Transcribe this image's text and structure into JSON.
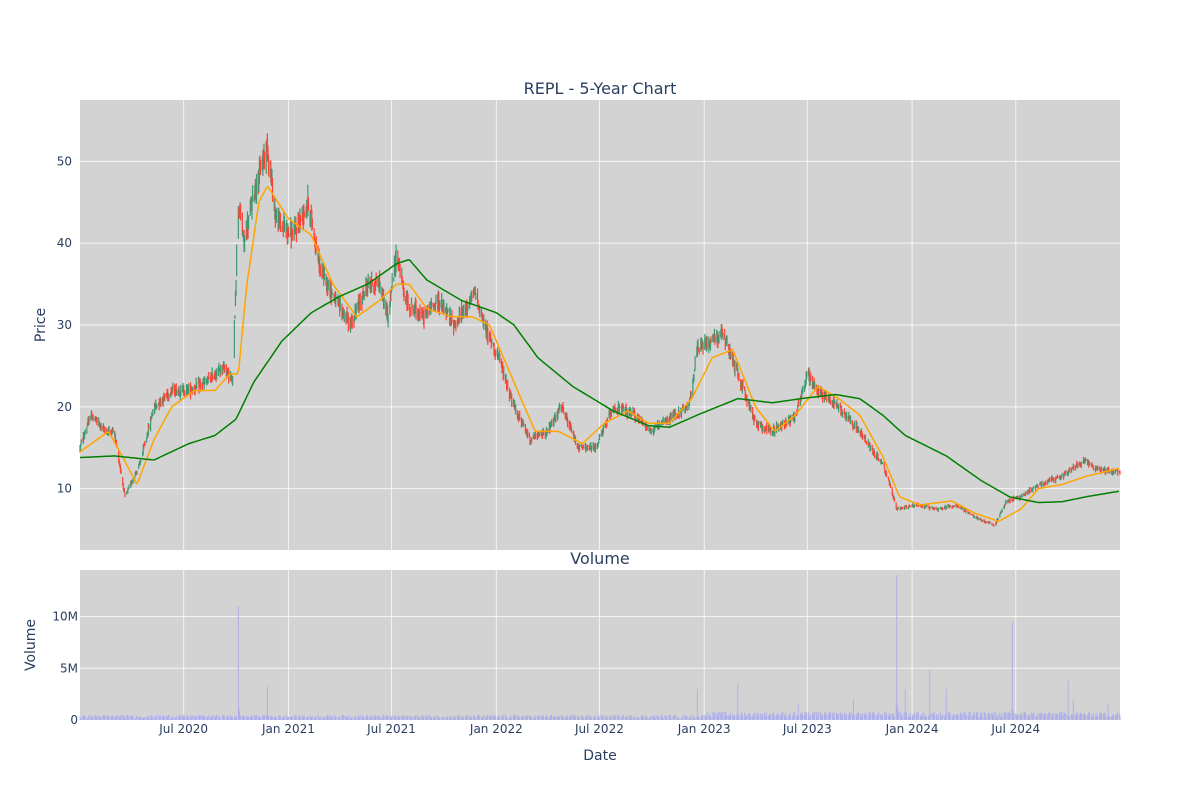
{
  "chart_data": [
    {
      "type": "candlestick",
      "title": "REPL - 5-Year Chart",
      "ylabel": "Price",
      "ylim": [
        2.5,
        57.5
      ],
      "yticks": [
        10,
        20,
        30,
        40,
        50
      ],
      "grid": true,
      "x_range": [
        "2020-01-01",
        "2024-12-31"
      ],
      "colors": {
        "up": "#3d9970",
        "down": "#ff4136",
        "ma_short": "#ffa500",
        "ma_long": "#008000"
      },
      "price_keypoints": [
        [
          "2020-01-01",
          15
        ],
        [
          "2020-01-20",
          19
        ],
        [
          "2020-02-15",
          17
        ],
        [
          "2020-03-01",
          17
        ],
        [
          "2020-03-20",
          9
        ],
        [
          "2020-04-15",
          13
        ],
        [
          "2020-05-10",
          20
        ],
        [
          "2020-06-10",
          22
        ],
        [
          "2020-07-10",
          22
        ],
        [
          "2020-08-10",
          23
        ],
        [
          "2020-09-10",
          25
        ],
        [
          "2020-09-25",
          23
        ],
        [
          "2020-10-05",
          45
        ],
        [
          "2020-10-15",
          40
        ],
        [
          "2020-11-01",
          46
        ],
        [
          "2020-11-25",
          52
        ],
        [
          "2020-12-10",
          43
        ],
        [
          "2021-01-10",
          41
        ],
        [
          "2021-02-05",
          45
        ],
        [
          "2021-02-25",
          37
        ],
        [
          "2021-03-25",
          33
        ],
        [
          "2021-04-20",
          30
        ],
        [
          "2021-05-20",
          35
        ],
        [
          "2021-06-10",
          35
        ],
        [
          "2021-06-25",
          31
        ],
        [
          "2021-07-10",
          39
        ],
        [
          "2021-07-25",
          33
        ],
        [
          "2021-08-25",
          31
        ],
        [
          "2021-09-20",
          33
        ],
        [
          "2021-10-20",
          30
        ],
        [
          "2021-11-25",
          34
        ],
        [
          "2021-12-10",
          30
        ],
        [
          "2022-01-05",
          26
        ],
        [
          "2022-02-01",
          20
        ],
        [
          "2022-03-01",
          16
        ],
        [
          "2022-04-01",
          17
        ],
        [
          "2022-04-25",
          20
        ],
        [
          "2022-05-25",
          15
        ],
        [
          "2022-06-25",
          15
        ],
        [
          "2022-07-25",
          20
        ],
        [
          "2022-09-01",
          19
        ],
        [
          "2022-10-01",
          17
        ],
        [
          "2022-11-10",
          19
        ],
        [
          "2022-12-05",
          20
        ],
        [
          "2022-12-20",
          27
        ],
        [
          "2023-02-01",
          29
        ],
        [
          "2023-03-01",
          24
        ],
        [
          "2023-04-01",
          18
        ],
        [
          "2023-05-01",
          17
        ],
        [
          "2023-06-10",
          19
        ],
        [
          "2023-07-01",
          24
        ],
        [
          "2023-07-20",
          22
        ],
        [
          "2023-08-25",
          20
        ],
        [
          "2023-09-20",
          18
        ],
        [
          "2023-10-20",
          15
        ],
        [
          "2023-11-10",
          13
        ],
        [
          "2023-11-25",
          10
        ],
        [
          "2023-12-05",
          7.5
        ],
        [
          "2024-01-10",
          8
        ],
        [
          "2024-02-15",
          7.5
        ],
        [
          "2024-03-20",
          8
        ],
        [
          "2024-04-20",
          6.5
        ],
        [
          "2024-05-25",
          5.5
        ],
        [
          "2024-06-15",
          8.5
        ],
        [
          "2024-07-10",
          9
        ],
        [
          "2024-08-10",
          10.5
        ],
        [
          "2024-09-20",
          11.5
        ],
        [
          "2024-10-30",
          13.5
        ],
        [
          "2024-11-15",
          12.5
        ],
        [
          "2024-12-31",
          12
        ]
      ],
      "ma_short_keypoints": [
        [
          "2020-01-01",
          14.5
        ],
        [
          "2020-02-20",
          17
        ],
        [
          "2020-03-15",
          14
        ],
        [
          "2020-04-10",
          10.5
        ],
        [
          "2020-05-10",
          16
        ],
        [
          "2020-06-10",
          20
        ],
        [
          "2020-07-20",
          22
        ],
        [
          "2020-08-25",
          22
        ],
        [
          "2020-09-20",
          24
        ],
        [
          "2020-10-05",
          24
        ],
        [
          "2020-10-20",
          35
        ],
        [
          "2020-11-10",
          45
        ],
        [
          "2020-11-25",
          47
        ],
        [
          "2021-01-01",
          43
        ],
        [
          "2021-02-10",
          41
        ],
        [
          "2021-03-20",
          35
        ],
        [
          "2021-05-01",
          31
        ],
        [
          "2021-06-10",
          33
        ],
        [
          "2021-07-10",
          35
        ],
        [
          "2021-08-01",
          35
        ],
        [
          "2021-09-01",
          32
        ],
        [
          "2021-10-15",
          31
        ],
        [
          "2021-11-20",
          31
        ],
        [
          "2021-12-20",
          30
        ],
        [
          "2022-02-01",
          23
        ],
        [
          "2022-03-10",
          17
        ],
        [
          "2022-04-20",
          17
        ],
        [
          "2022-06-01",
          15.5
        ],
        [
          "2022-07-10",
          18
        ],
        [
          "2022-08-20",
          19.5
        ],
        [
          "2022-09-25",
          18
        ],
        [
          "2022-11-01",
          18
        ],
        [
          "2022-12-10",
          21
        ],
        [
          "2023-01-15",
          26
        ],
        [
          "2023-02-20",
          27
        ],
        [
          "2023-04-01",
          20
        ],
        [
          "2023-05-05",
          17
        ],
        [
          "2023-06-10",
          19
        ],
        [
          "2023-07-20",
          22.5
        ],
        [
          "2023-08-25",
          21
        ],
        [
          "2023-10-01",
          19
        ],
        [
          "2023-11-10",
          14
        ],
        [
          "2023-12-10",
          9
        ],
        [
          "2024-01-15",
          8
        ],
        [
          "2024-03-10",
          8.5
        ],
        [
          "2024-04-20",
          7
        ],
        [
          "2024-06-01",
          6
        ],
        [
          "2024-07-10",
          7.5
        ],
        [
          "2024-08-10",
          10
        ],
        [
          "2024-09-20",
          10.5
        ],
        [
          "2024-11-01",
          11.5
        ],
        [
          "2024-12-31",
          12.5
        ]
      ],
      "ma_long_keypoints": [
        [
          "2020-01-01",
          13.8
        ],
        [
          "2020-03-01",
          14
        ],
        [
          "2020-05-10",
          13.5
        ],
        [
          "2020-07-10",
          15.5
        ],
        [
          "2020-08-25",
          16.5
        ],
        [
          "2020-10-01",
          18.5
        ],
        [
          "2020-11-01",
          23
        ],
        [
          "2020-12-20",
          28
        ],
        [
          "2021-02-10",
          31.5
        ],
        [
          "2021-04-01",
          33.5
        ],
        [
          "2021-05-20",
          35
        ],
        [
          "2021-07-10",
          37.5
        ],
        [
          "2021-08-01",
          38
        ],
        [
          "2021-09-01",
          35.5
        ],
        [
          "2021-11-01",
          33
        ],
        [
          "2022-01-01",
          31.5
        ],
        [
          "2022-02-01",
          30
        ],
        [
          "2022-03-15",
          26
        ],
        [
          "2022-05-15",
          22.5
        ],
        [
          "2022-07-25",
          19.5
        ],
        [
          "2022-09-25",
          17.7
        ],
        [
          "2022-11-01",
          17.5
        ],
        [
          "2022-12-20",
          19
        ],
        [
          "2023-03-01",
          21
        ],
        [
          "2023-05-01",
          20.5
        ],
        [
          "2023-06-20",
          21
        ],
        [
          "2023-08-20",
          21.5
        ],
        [
          "2023-10-01",
          21
        ],
        [
          "2023-11-10",
          19
        ],
        [
          "2023-12-20",
          16.5
        ],
        [
          "2024-03-01",
          14
        ],
        [
          "2024-05-01",
          11
        ],
        [
          "2024-06-20",
          9
        ],
        [
          "2024-08-10",
          8.3
        ],
        [
          "2024-09-20",
          8.4
        ],
        [
          "2024-11-01",
          9
        ],
        [
          "2024-12-31",
          9.7
        ]
      ]
    },
    {
      "type": "bar",
      "title": "Volume",
      "xlabel": "Date",
      "ylabel": "Volume",
      "ylim": [
        0,
        14500000
      ],
      "yticks": [
        0,
        5000000,
        10000000
      ],
      "ytick_labels": [
        "0",
        "5M",
        "10M"
      ],
      "xticks": [
        "2020-07-01",
        "2021-01-01",
        "2021-07-01",
        "2022-01-01",
        "2022-07-01",
        "2023-01-01",
        "2023-07-01",
        "2024-01-01",
        "2024-07-01"
      ],
      "xtick_labels": [
        "Jul 2020",
        "Jan 2021",
        "Jul 2021",
        "Jan 2022",
        "Jul 2022",
        "Jan 2023",
        "Jul 2023",
        "Jan 2024",
        "Jul 2024"
      ],
      "grid": true,
      "bar_color": "#b0b0e8",
      "base_volume": 300000,
      "volume_spikes": [
        [
          "2020-10-05",
          11000000
        ],
        [
          "2020-10-10",
          2500000
        ],
        [
          "2020-11-25",
          3200000
        ],
        [
          "2021-08-01",
          700000
        ],
        [
          "2022-12-20",
          3000000
        ],
        [
          "2023-03-01",
          3500000
        ],
        [
          "2023-06-15",
          1500000
        ],
        [
          "2023-07-01",
          2200000
        ],
        [
          "2023-09-20",
          2000000
        ],
        [
          "2023-11-25",
          5000000
        ],
        [
          "2023-12-05",
          14000000
        ],
        [
          "2023-12-10",
          6500000
        ],
        [
          "2023-12-20",
          3000000
        ],
        [
          "2024-01-20",
          2500000
        ],
        [
          "2024-02-01",
          4800000
        ],
        [
          "2024-03-01",
          3000000
        ],
        [
          "2024-06-15",
          5500000
        ],
        [
          "2024-06-25",
          9500000
        ],
        [
          "2024-09-01",
          1800000
        ],
        [
          "2024-10-01",
          3800000
        ],
        [
          "2024-10-10",
          2000000
        ],
        [
          "2024-12-01",
          5500000
        ],
        [
          "2024-12-10",
          1500000
        ]
      ]
    }
  ]
}
